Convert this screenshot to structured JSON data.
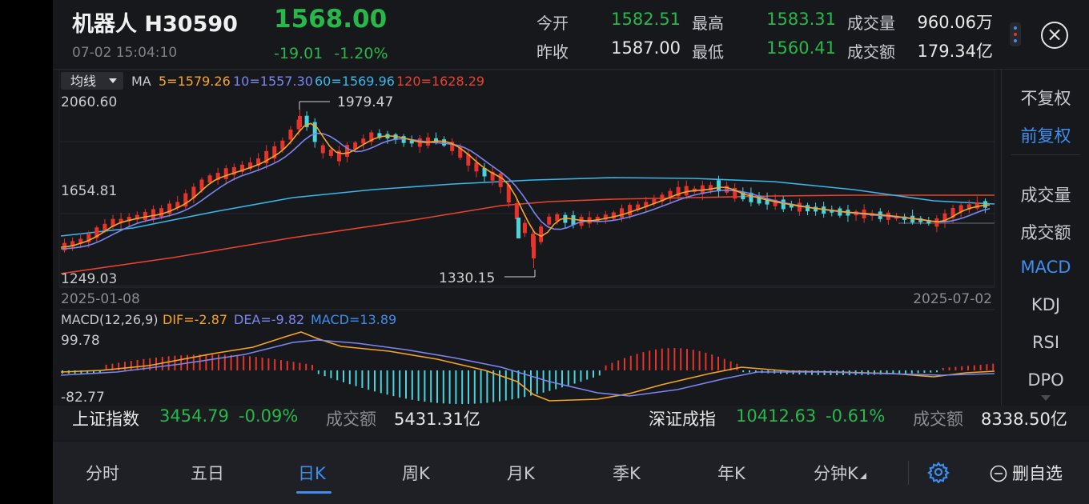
{
  "header": {
    "title": "机器人 H30590",
    "datetime": "07-02 15:04:10",
    "price": "1568.00",
    "change": "-19.01",
    "change_pct": "-1.20%",
    "quotes": [
      {
        "label": "今开",
        "value": "1582.51",
        "color": "green"
      },
      {
        "label": "最高",
        "value": "1583.31",
        "color": "green"
      },
      {
        "label": "成交量",
        "value": "960.06万",
        "color": "white"
      },
      {
        "label": "昨收",
        "value": "1587.00",
        "color": "white"
      },
      {
        "label": "最低",
        "value": "1560.41",
        "color": "green"
      },
      {
        "label": "成交额",
        "value": "179.34亿",
        "color": "white"
      }
    ],
    "close_icon": "×",
    "menu_icon": "vertical-dots-icon"
  },
  "colors": {
    "up": "#e8322a",
    "down": "#27b84a",
    "up_candle": "#e8322a",
    "down_candle": "#45d6dd",
    "ma5": "#f6a623",
    "ma10": "#7b86f0",
    "ma60": "#39b6ea",
    "ma120": "#e8432f",
    "accent": "#3d8ef0"
  },
  "ma_bar": {
    "selector": "均线",
    "label": "MA",
    "ma5": "5=1579.26",
    "ma10": "10=1557.30",
    "ma60": "60=1569.96",
    "ma120": "120=1628.29"
  },
  "kline": {
    "y_top": "2060.60",
    "y_mid": "1654.81",
    "y_bottom": "1249.03",
    "max_label": "1979.47",
    "min_label": "1330.15",
    "date_start": "2025-01-08",
    "date_end": "2025-07-02"
  },
  "macd": {
    "label": "MACD(12,26,9)",
    "dif": "DIF=-2.87",
    "dea": "DEA=-9.82",
    "macd": "MACD=13.89",
    "y_top": "99.78",
    "y_bottom": "-82.77"
  },
  "side_panel": {
    "items": [
      "不复权",
      "前复权",
      "成交量",
      "成交额",
      "MACD",
      "KDJ",
      "RSI",
      "DPO"
    ]
  },
  "index_bar": {
    "sh_name": "上证指数",
    "sh_value": "3454.79",
    "sh_pct": "-0.09%",
    "sh_amount_label": "成交额",
    "sh_amount": "5431.31亿",
    "sz_name": "深证成指",
    "sz_value": "10412.63",
    "sz_pct": "-0.61%",
    "sz_amount_label": "成交额",
    "sz_amount": "8338.50亿"
  },
  "tabs": [
    "分时",
    "五日",
    "日K",
    "周K",
    "月K",
    "季K",
    "年K",
    "分钟K"
  ],
  "delete_favorite": "删自选"
}
